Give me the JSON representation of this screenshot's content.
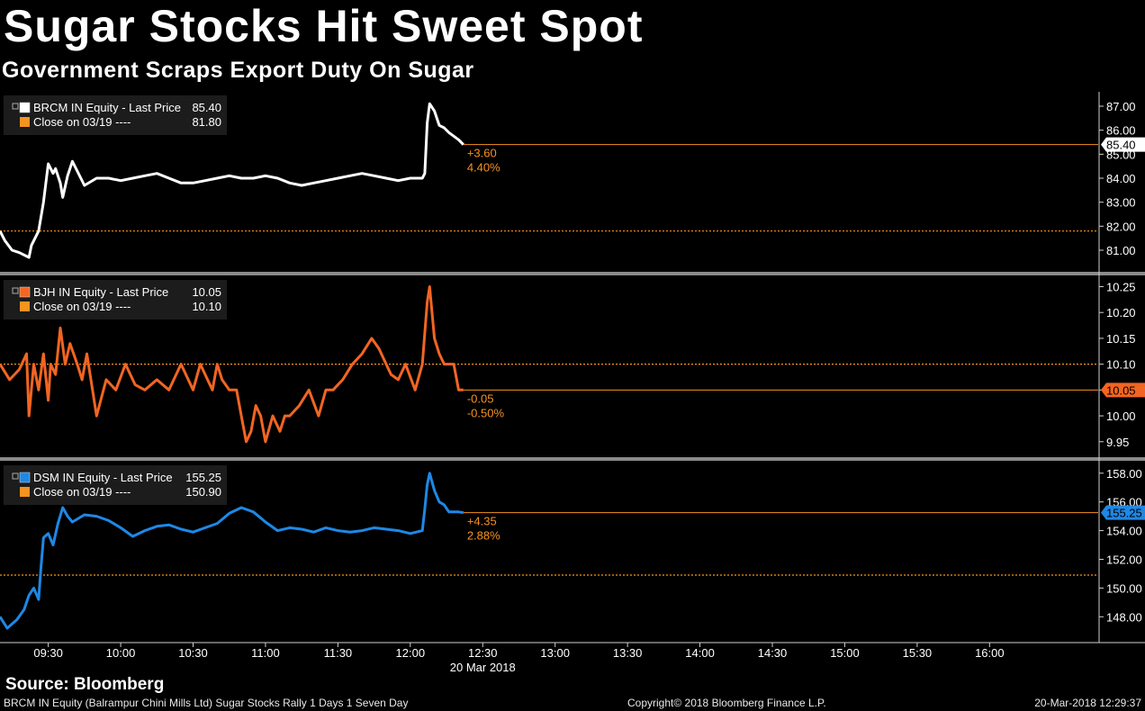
{
  "header": {
    "title": "Sugar Stocks Hit Sweet Spot",
    "subtitle": "Government Scraps Export Duty On Sugar"
  },
  "footer": {
    "source": "Source: Bloomberg",
    "left": "BRCM IN Equity (Balrampur Chini Mills Ltd) Sugar Stocks Rally 1 Days 1 Seven Day",
    "center": "Copyright© 2018 Bloomberg Finance L.P.",
    "right": "20-Mar-2018 12:29:37"
  },
  "colors": {
    "background": "#000000",
    "brcm": "#ffffff",
    "bjh": "#f26522",
    "dsm": "#1e88e5",
    "close_line": "#f7931e",
    "separator": "#8a8a8a"
  },
  "chart_data": {
    "type": "line",
    "x_axis": {
      "tick_labels": [
        "09:30",
        "10:00",
        "10:30",
        "11:00",
        "11:30",
        "12:00",
        "12:30",
        "13:00",
        "13:30",
        "14:00",
        "14:30",
        "15:00",
        "15:30",
        "16:00"
      ],
      "date_label": "20 Mar 2018",
      "range": [
        "09:10",
        "16:45"
      ]
    },
    "panels": [
      {
        "ticker": "BRCM IN Equity",
        "legend_last": "BRCM IN Equity - Last Price",
        "last_price": "85.40",
        "legend_close": "Close on 03/19 ----",
        "close_value": "81.80",
        "close": 81.8,
        "last": 85.4,
        "change": "+3.60",
        "change_pct": "4.40%",
        "last_tag": "85.40",
        "color": "#ffffff",
        "ylim": [
          80.1,
          87.6
        ],
        "yticks": [
          "81.00",
          "82.00",
          "83.00",
          "84.00",
          "85.00",
          "86.00",
          "87.00"
        ],
        "x": [
          "09:10",
          "09:12",
          "09:15",
          "09:18",
          "09:22",
          "09:23",
          "09:26",
          "09:28",
          "09:30",
          "09:31",
          "09:32",
          "09:33",
          "09:35",
          "09:36",
          "09:38",
          "09:40",
          "09:42",
          "09:45",
          "09:50",
          "09:55",
          "10:00",
          "10:05",
          "10:10",
          "10:15",
          "10:20",
          "10:25",
          "10:30",
          "10:35",
          "10:40",
          "10:45",
          "10:50",
          "10:55",
          "11:00",
          "11:05",
          "11:10",
          "11:15",
          "11:20",
          "11:25",
          "11:30",
          "11:35",
          "11:40",
          "11:45",
          "11:50",
          "11:55",
          "12:00",
          "12:05",
          "12:06",
          "12:07",
          "12:08",
          "12:10",
          "12:12",
          "12:14",
          "12:16",
          "12:20",
          "12:22"
        ],
        "y": [
          81.8,
          81.4,
          81.0,
          80.9,
          80.7,
          81.2,
          81.8,
          83.0,
          84.6,
          84.4,
          84.2,
          84.4,
          83.8,
          83.2,
          84.1,
          84.7,
          84.3,
          83.7,
          84.0,
          84.0,
          83.9,
          84.0,
          84.1,
          84.2,
          84.0,
          83.8,
          83.8,
          83.9,
          84.0,
          84.1,
          84.0,
          84.0,
          84.1,
          84.0,
          83.8,
          83.7,
          83.8,
          83.9,
          84.0,
          84.1,
          84.2,
          84.1,
          84.0,
          83.9,
          84.0,
          84.0,
          84.2,
          86.3,
          87.1,
          86.8,
          86.2,
          86.1,
          85.9,
          85.6,
          85.4
        ]
      },
      {
        "ticker": "BJH IN Equity",
        "legend_last": "BJH IN Equity - Last Price",
        "last_price": "10.05",
        "legend_close": "Close on 03/19 ----",
        "close_value": "10.10",
        "close": 10.1,
        "last": 10.05,
        "change": "-0.05",
        "change_pct": "-0.50%",
        "last_tag": "10.05",
        "color": "#f26522",
        "ylim": [
          9.92,
          10.27
        ],
        "yticks": [
          "9.95",
          "10.00",
          "10.05",
          "10.10",
          "10.15",
          "10.20",
          "10.25"
        ],
        "x": [
          "09:10",
          "09:14",
          "09:18",
          "09:21",
          "09:22",
          "09:24",
          "09:26",
          "09:28",
          "09:30",
          "09:31",
          "09:33",
          "09:35",
          "09:37",
          "09:39",
          "09:42",
          "09:44",
          "09:46",
          "09:50",
          "09:54",
          "09:58",
          "10:02",
          "10:06",
          "10:10",
          "10:15",
          "10:20",
          "10:25",
          "10:30",
          "10:33",
          "10:36",
          "10:38",
          "10:40",
          "10:42",
          "10:45",
          "10:48",
          "10:50",
          "10:52",
          "10:54",
          "10:56",
          "10:58",
          "11:00",
          "11:03",
          "11:06",
          "11:08",
          "11:10",
          "11:14",
          "11:18",
          "11:22",
          "11:25",
          "11:28",
          "11:32",
          "11:36",
          "11:40",
          "11:44",
          "11:47",
          "11:50",
          "11:52",
          "11:55",
          "11:58",
          "12:02",
          "12:05",
          "12:07",
          "12:08",
          "12:10",
          "12:12",
          "12:14",
          "12:16",
          "12:18",
          "12:20",
          "12:22"
        ],
        "y": [
          10.1,
          10.07,
          10.09,
          10.12,
          10.0,
          10.1,
          10.05,
          10.12,
          10.03,
          10.1,
          10.08,
          10.17,
          10.1,
          10.14,
          10.1,
          10.07,
          10.12,
          10.0,
          10.07,
          10.05,
          10.1,
          10.06,
          10.05,
          10.07,
          10.05,
          10.1,
          10.05,
          10.1,
          10.07,
          10.05,
          10.1,
          10.07,
          10.05,
          10.05,
          10.0,
          9.95,
          9.97,
          10.02,
          10.0,
          9.95,
          10.0,
          9.97,
          10.0,
          10.0,
          10.02,
          10.05,
          10.0,
          10.05,
          10.05,
          10.07,
          10.1,
          10.12,
          10.15,
          10.13,
          10.1,
          10.08,
          10.07,
          10.1,
          10.05,
          10.1,
          10.22,
          10.25,
          10.15,
          10.12,
          10.1,
          10.1,
          10.1,
          10.05,
          10.05
        ]
      },
      {
        "ticker": "DSM IN Equity",
        "legend_last": "DSM IN Equity - Last Price",
        "last_price": "155.25",
        "legend_close": "Close on 03/19 ----",
        "close_value": "150.90",
        "close": 150.9,
        "last": 155.25,
        "change": "+4.35",
        "change_pct": "2.88%",
        "last_tag": "155.25",
        "color": "#1e88e5",
        "ylim": [
          146.2,
          158.8
        ],
        "yticks": [
          "148.00",
          "150.00",
          "152.00",
          "154.00",
          "156.00",
          "158.00"
        ],
        "x": [
          "09:10",
          "09:13",
          "09:17",
          "09:20",
          "09:22",
          "09:24",
          "09:26",
          "09:27",
          "09:28",
          "09:30",
          "09:32",
          "09:34",
          "09:36",
          "09:38",
          "09:40",
          "09:45",
          "09:50",
          "09:55",
          "10:00",
          "10:05",
          "10:10",
          "10:15",
          "10:20",
          "10:25",
          "10:30",
          "10:35",
          "10:40",
          "10:45",
          "10:50",
          "10:55",
          "11:00",
          "11:05",
          "11:10",
          "11:15",
          "11:20",
          "11:25",
          "11:30",
          "11:35",
          "11:40",
          "11:45",
          "11:50",
          "11:55",
          "12:00",
          "12:05",
          "12:06",
          "12:07",
          "12:08",
          "12:10",
          "12:12",
          "12:14",
          "12:16",
          "12:20",
          "12:22"
        ],
        "y": [
          148.0,
          147.2,
          147.8,
          148.5,
          149.5,
          150.0,
          149.2,
          151.5,
          153.5,
          153.8,
          153.0,
          154.5,
          155.6,
          155.0,
          154.6,
          155.1,
          155.0,
          154.7,
          154.2,
          153.6,
          154.0,
          154.3,
          154.4,
          154.1,
          153.9,
          154.2,
          154.5,
          155.2,
          155.6,
          155.3,
          154.6,
          154.0,
          154.2,
          154.1,
          153.9,
          154.2,
          154.0,
          153.9,
          154.0,
          154.2,
          154.1,
          154.0,
          153.8,
          154.0,
          155.5,
          157.2,
          158.0,
          156.8,
          156.0,
          155.8,
          155.3,
          155.3,
          155.25
        ]
      }
    ]
  }
}
